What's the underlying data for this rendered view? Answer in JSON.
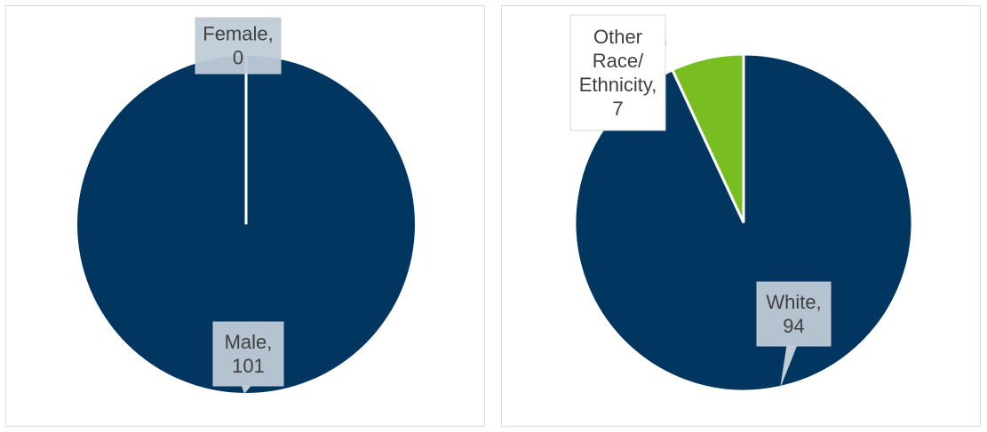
{
  "chart_data": [
    {
      "type": "pie",
      "title": "",
      "categories": [
        "Male",
        "Female"
      ],
      "values": [
        101,
        0
      ],
      "colors": [
        "#003660",
        "#FFFFFF"
      ],
      "data_labels": [
        [
          "Male,",
          "101"
        ],
        [
          "Female,",
          "0"
        ]
      ],
      "legend": "none"
    },
    {
      "type": "pie",
      "title": "",
      "categories": [
        "White",
        "Other Race/ Ethnicity"
      ],
      "values": [
        94,
        7
      ],
      "colors": [
        "#003660",
        "#78BE20"
      ],
      "data_labels": [
        [
          "White,",
          "94"
        ],
        [
          "Other",
          "Race/",
          "Ethnicity,",
          "7"
        ]
      ],
      "legend": "none"
    }
  ]
}
